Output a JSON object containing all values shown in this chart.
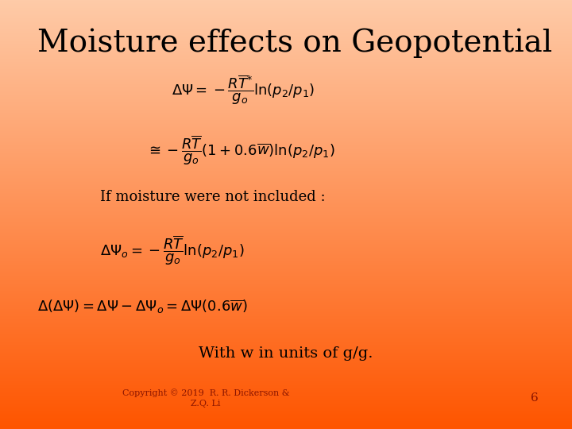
{
  "title": "Moisture effects on Geopotential",
  "title_fontsize": 28,
  "title_color": "#000000",
  "background_top": "#FECBA8",
  "background_bottom": "#FF5500",
  "eq1": "$\\Delta\\Psi = -\\dfrac{R\\overline{T}^{*}}{g_o}\\ln(p_2/p_1)$",
  "eq2": "$\\cong -\\dfrac{R\\overline{T}}{g_o}(1+0.6\\overline{w})\\ln(p_2/p_1)$",
  "eq3": "If moisture were not included :",
  "eq4": "$\\Delta\\Psi_o = -\\dfrac{R\\overline{T}}{g_o}\\ln(p_2/p_1)$",
  "eq5": "$\\Delta(\\Delta\\Psi) = \\Delta\\Psi - \\Delta\\Psi_o = \\Delta\\Psi(0.6\\overline{w})$",
  "note": "With w in units of g/g.",
  "copyright": "Copyright © 2019  R. R. Dickerson &\nZ.Q. Li",
  "page_num": "6",
  "eq_color": "#000000",
  "note_color": "#000000",
  "copyright_color": "#8B1500",
  "page_color": "#8B1500",
  "eq_fontsize": 13,
  "note_fontsize": 14,
  "copyright_fontsize": 8
}
